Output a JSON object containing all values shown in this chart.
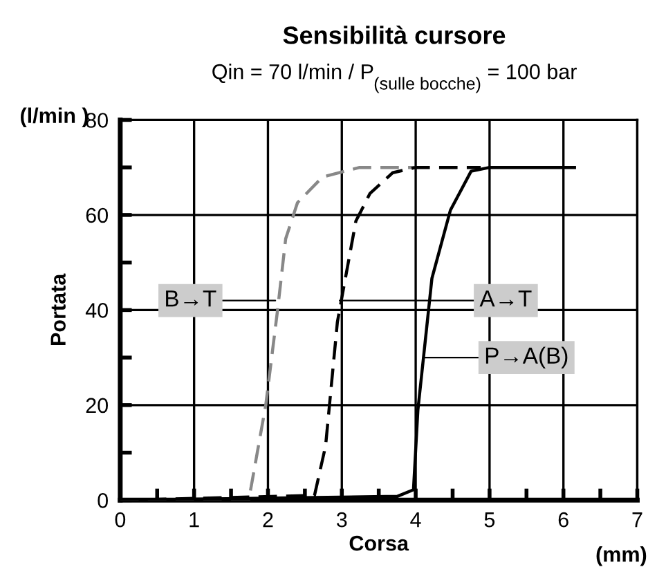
{
  "chart_data": {
    "type": "line",
    "title": "Sensibilità cursore",
    "subtitle": "Qin = 70 l/min / P$_{(sulle bocche)}$ = 100 bar",
    "xlabel": "Corsa",
    "ylabel": "Portata",
    "annotations": [
      "(l/min )",
      "(mm)",
      {
        "text": "B→T",
        "x": 2.1,
        "y": 42
      },
      {
        "text": "A→T",
        "x": 2.97,
        "y": 42
      },
      {
        "text": "P→A(B)",
        "x": 4.1,
        "y": 30
      }
    ],
    "series": [
      {
        "color": "#888888",
        "line_style": "dashed",
        "x": [
          0,
          1.74,
          1.97,
          2.13,
          2.24,
          2.4,
          2.74,
          3.24,
          4.0
        ],
        "values": [
          0,
          0,
          20,
          40,
          55,
          62.6,
          68,
          70,
          70
        ]
      },
      {
        "color": "#000000",
        "line_style": "dashed",
        "x": [
          0,
          2.63,
          2.78,
          2.94,
          3.19,
          3.38,
          3.69,
          4.0,
          4.88
        ],
        "values": [
          0,
          1,
          11.4,
          37.5,
          58.7,
          64.5,
          68.9,
          70,
          70
        ]
      },
      {
        "color": "#000000",
        "line_style": "solid",
        "x": [
          0,
          3.75,
          3.97,
          4.03,
          4.22,
          4.47,
          4.75,
          5.0,
          6.15
        ],
        "values": [
          0,
          0.8,
          2.2,
          19,
          46.7,
          61,
          69.2,
          70,
          70
        ]
      }
    ],
    "xlim": [
      0,
      7
    ],
    "ylim": [
      0,
      80
    ],
    "xticks": [
      0,
      {
        "value": 0.5,
        "label": null
      },
      1,
      {
        "value": 1.5,
        "label": null
      },
      2,
      {
        "value": 2.5,
        "label": null
      },
      3,
      {
        "value": 3.5,
        "label": null
      },
      4,
      {
        "value": 4.5,
        "label": null
      },
      5,
      {
        "value": 5.5,
        "label": null
      },
      6,
      {
        "value": 6.5,
        "label": null
      },
      7
    ],
    "yticks": [
      0,
      {
        "value": 10,
        "label": null
      },
      20,
      {
        "value": 30,
        "label": null
      },
      40,
      {
        "value": 50,
        "label": null
      },
      60,
      {
        "value": 70,
        "label": null
      },
      80
    ],
    "grid": true,
    "marker": "none"
  }
}
